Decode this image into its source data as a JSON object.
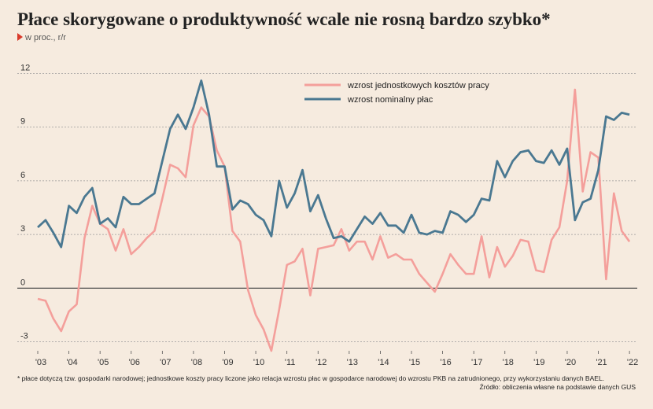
{
  "title": "Płace skorygowane o produktywność wcale nie rosną bardzo szybko*",
  "subtitle": "w proc., r/r",
  "footnote": "* płace dotyczą tzw. gospodarki narodowej; jednostkowe koszty pracy liczone jako relacja wzrostu płac w gospodarce narodowej do wzrostu PKB na zatrudnionego, przy wykorzystaniu danych BAEL.",
  "source": "Źródło: obliczenia własne na podstawie danych GUS",
  "chart_data": {
    "type": "line",
    "ylim": [
      -3.5,
      12.5
    ],
    "yticks": [
      -3,
      0,
      3,
      6,
      9,
      12
    ],
    "ytick_labels": [
      "-3",
      "0",
      "3",
      "6",
      "9",
      "12"
    ],
    "x_start_year": 2003,
    "x_end_year": 2022.25,
    "xticks": [
      "'03",
      "'04",
      "'05",
      "'06",
      "'07",
      "'08",
      "'09",
      "'10",
      "'11",
      "'12",
      "'13",
      "'14",
      "'15",
      "'16",
      "'17",
      "'18",
      "'19",
      "'20",
      "'21",
      "'22"
    ],
    "legend_position": "top-right",
    "series": [
      {
        "name": "wzrost jednostkowych kosztów pracy",
        "color": "#f49f9b",
        "values": [
          -0.6,
          -0.7,
          -1.7,
          -2.4,
          -1.3,
          -0.9,
          2.8,
          4.6,
          3.6,
          3.3,
          2.1,
          3.3,
          1.9,
          2.3,
          2.8,
          3.2,
          5.0,
          6.9,
          6.7,
          6.2,
          9.1,
          10.1,
          9.6,
          7.7,
          6.8,
          3.2,
          2.6,
          -0.1,
          -1.5,
          -2.3,
          -3.5,
          -1.2,
          1.3,
          1.5,
          2.2,
          -0.4,
          2.2,
          2.3,
          2.4,
          3.3,
          2.1,
          2.6,
          2.6,
          1.6,
          2.9,
          1.7,
          1.9,
          1.6,
          1.6,
          0.8,
          0.3,
          -0.2,
          0.8,
          1.9,
          1.3,
          0.8,
          0.8,
          2.9,
          0.6,
          2.3,
          1.2,
          1.8,
          2.7,
          2.6,
          1.0,
          0.9,
          2.7,
          3.4,
          6.0,
          11.1,
          5.4,
          7.6,
          7.3,
          0.5,
          5.3,
          3.2,
          2.6
        ]
      },
      {
        "name": "wzrost nominalny płac",
        "color": "#4a7891",
        "values": [
          3.4,
          3.8,
          3.1,
          2.3,
          4.6,
          4.2,
          5.1,
          5.6,
          3.6,
          3.9,
          3.4,
          5.1,
          4.7,
          4.7,
          5.0,
          5.3,
          7.1,
          8.9,
          9.7,
          8.9,
          10.1,
          11.6,
          9.7,
          6.8,
          6.8,
          4.4,
          4.9,
          4.7,
          4.1,
          3.8,
          2.9,
          6.0,
          4.5,
          5.3,
          6.6,
          4.3,
          5.2,
          3.9,
          2.8,
          2.9,
          2.6,
          3.3,
          4.0,
          3.6,
          4.2,
          3.5,
          3.5,
          3.1,
          4.1,
          3.1,
          3.0,
          3.2,
          3.1,
          4.3,
          4.1,
          3.7,
          4.1,
          5.0,
          4.9,
          7.1,
          6.2,
          7.1,
          7.6,
          7.7,
          7.1,
          7.0,
          7.7,
          6.9,
          7.8,
          3.8,
          4.8,
          5.0,
          6.6,
          9.6,
          9.4,
          9.8,
          9.7
        ]
      }
    ]
  }
}
